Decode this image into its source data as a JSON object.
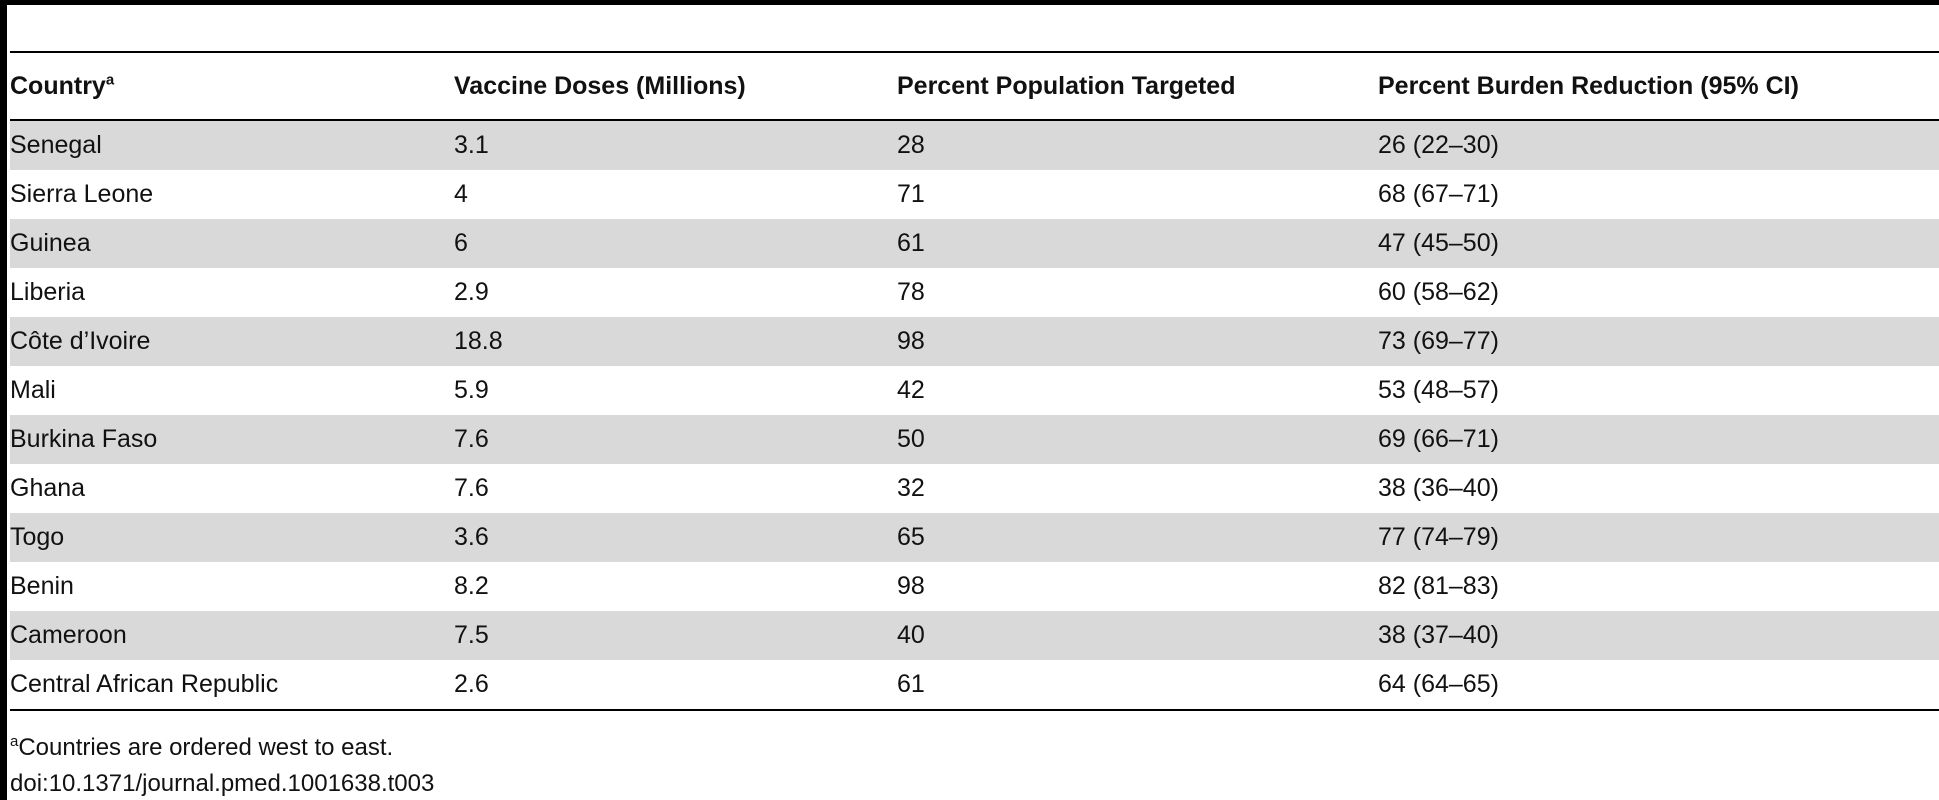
{
  "table": {
    "headers": {
      "country": "Country",
      "country_note": "a",
      "doses": "Vaccine Doses (Millions)",
      "targeted": "Percent Population Targeted",
      "reduction": "Percent Burden Reduction (95% CI)"
    },
    "rows": [
      {
        "country": "Senegal",
        "doses": "3.1",
        "targeted": "28",
        "reduction": "26 (22–30)"
      },
      {
        "country": "Sierra Leone",
        "doses": "4",
        "targeted": "71",
        "reduction": "68 (67–71)"
      },
      {
        "country": "Guinea",
        "doses": "6",
        "targeted": "61",
        "reduction": "47 (45–50)"
      },
      {
        "country": "Liberia",
        "doses": "2.9",
        "targeted": "78",
        "reduction": "60 (58–62)"
      },
      {
        "country": "Côte d’Ivoire",
        "doses": "18.8",
        "targeted": "98",
        "reduction": "73 (69–77)"
      },
      {
        "country": "Mali",
        "doses": "5.9",
        "targeted": "42",
        "reduction": "53 (48–57)"
      },
      {
        "country": "Burkina Faso",
        "doses": "7.6",
        "targeted": "50",
        "reduction": "69 (66–71)"
      },
      {
        "country": "Ghana",
        "doses": "7.6",
        "targeted": "32",
        "reduction": "38 (36–40)"
      },
      {
        "country": "Togo",
        "doses": "3.6",
        "targeted": "65",
        "reduction": "77 (74–79)"
      },
      {
        "country": "Benin",
        "doses": "8.2",
        "targeted": "98",
        "reduction": "82 (81–83)"
      },
      {
        "country": "Cameroon",
        "doses": "7.5",
        "targeted": "40",
        "reduction": "38 (37–40)"
      },
      {
        "country": "Central African Republic",
        "doses": "2.6",
        "targeted": "61",
        "reduction": "64 (64–65)"
      }
    ]
  },
  "footnote": {
    "marker": "a",
    "text": "Countries are ordered west to east."
  },
  "doi": "doi:10.1371/journal.pmed.1001638.t003",
  "colors": {
    "stripe": "#d9d9d9",
    "rule": "#000000"
  }
}
